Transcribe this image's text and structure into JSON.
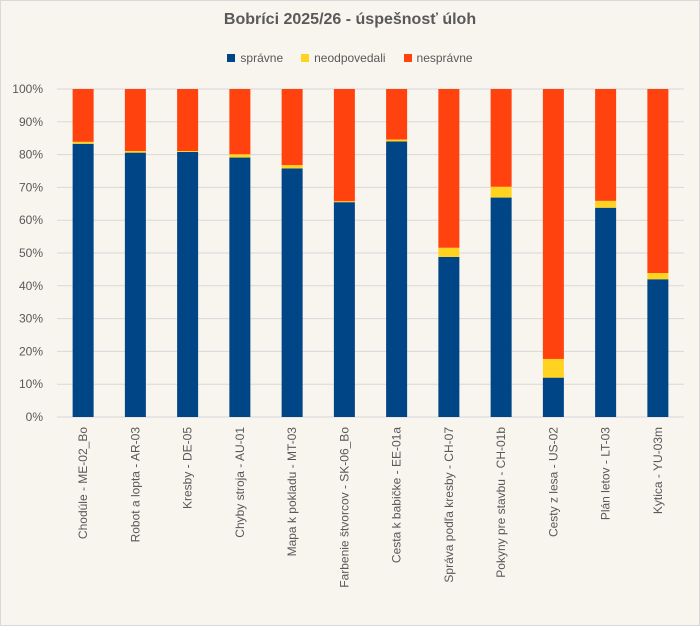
{
  "chart_data": {
    "type": "bar",
    "stacked": "percent",
    "title": "Bobríci 2025/26 - úspešnosť úloh",
    "legend_position": "top",
    "grid": true,
    "ylim": [
      0,
      100
    ],
    "yticks": [
      "0%",
      "10%",
      "20%",
      "30%",
      "40%",
      "50%",
      "60%",
      "70%",
      "80%",
      "90%",
      "100%"
    ],
    "categories": [
      "Chodúle - ME-02_Bo",
      "Robot a lopta - AR-03",
      "Kresby - DE-05",
      "Chyby stroja - AU-01",
      "Mapa k pokladu - MT-03",
      "Farbenie štvorcov - SK-06_Bo",
      "Cesta k babičke - EE-01a",
      "Správa podľa kresby - CH-07",
      "Pokyny pre stavbu - CH-01b",
      "Cesty z lesa - US-02",
      "Plán letov - LT-03",
      "Kytica - YU-03m"
    ],
    "series": [
      {
        "name": "správne",
        "color": "#004586",
        "values": [
          83.3,
          80.6,
          80.8,
          79.1,
          75.8,
          65.5,
          84.0,
          48.8,
          66.9,
          12.0,
          63.8,
          42.0
        ]
      },
      {
        "name": "neodpovedali",
        "color": "#ffd320",
        "values": [
          0.6,
          0.5,
          0.3,
          1.0,
          1.0,
          0.3,
          0.6,
          2.8,
          3.3,
          5.7,
          2.1,
          1.9
        ]
      },
      {
        "name": "nesprávne",
        "color": "#ff420e",
        "values": [
          16.1,
          18.9,
          18.9,
          19.9,
          23.2,
          34.2,
          15.4,
          48.4,
          29.8,
          82.3,
          34.1,
          56.1
        ]
      }
    ]
  }
}
